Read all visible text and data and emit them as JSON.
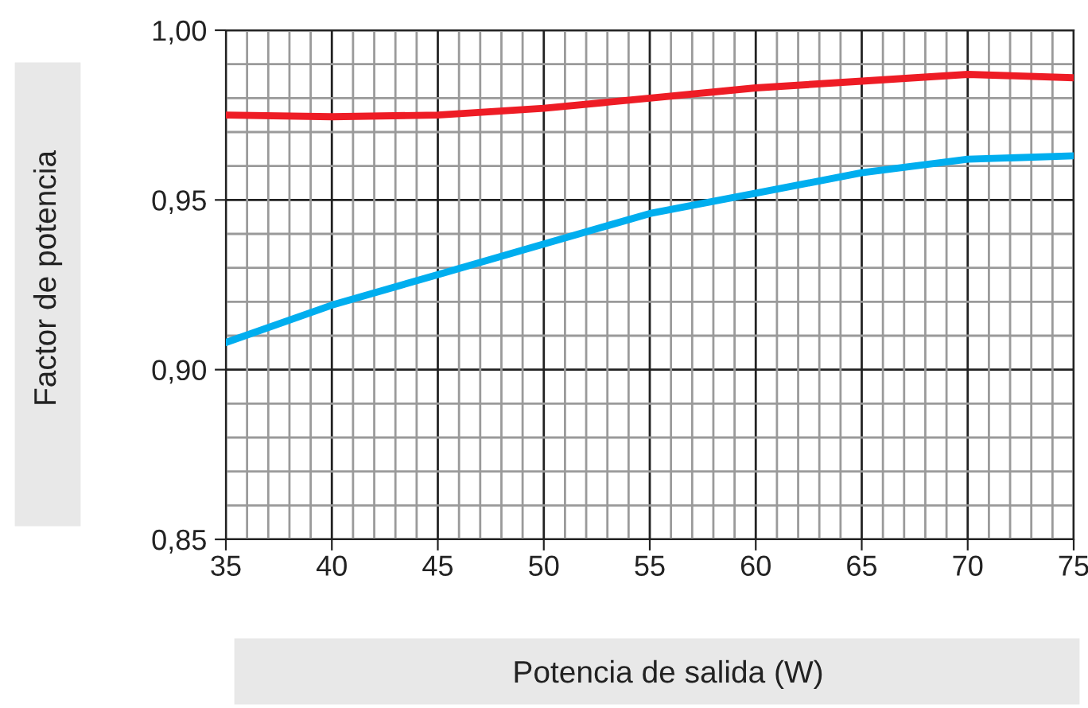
{
  "chart_data": {
    "type": "line",
    "xlabel": "Potencia de salida (W)",
    "ylabel": "Factor de potencia",
    "x": [
      35,
      40,
      45,
      50,
      55,
      60,
      65,
      70,
      75
    ],
    "series": [
      {
        "color": "#ee1c25",
        "values": [
          0.975,
          0.9745,
          0.975,
          0.977,
          0.98,
          0.983,
          0.985,
          0.987,
          0.986
        ]
      },
      {
        "color": "#00aeef",
        "values": [
          0.908,
          0.919,
          0.928,
          0.937,
          0.946,
          0.952,
          0.958,
          0.962,
          0.963
        ]
      }
    ],
    "xlim": [
      35,
      75
    ],
    "xticks": [
      35,
      40,
      45,
      50,
      55,
      60,
      65,
      70,
      75
    ],
    "ylim": [
      0.85,
      1.0
    ],
    "yticks": [
      {
        "value": 0.85,
        "label": "0,85"
      },
      {
        "value": 0.9,
        "label": "0,90"
      },
      {
        "value": 0.95,
        "label": "0,95"
      },
      {
        "value": 1.0,
        "label": "1,00"
      }
    ],
    "grid": true,
    "marker": "none",
    "line_style": "solid",
    "legend": false
  }
}
